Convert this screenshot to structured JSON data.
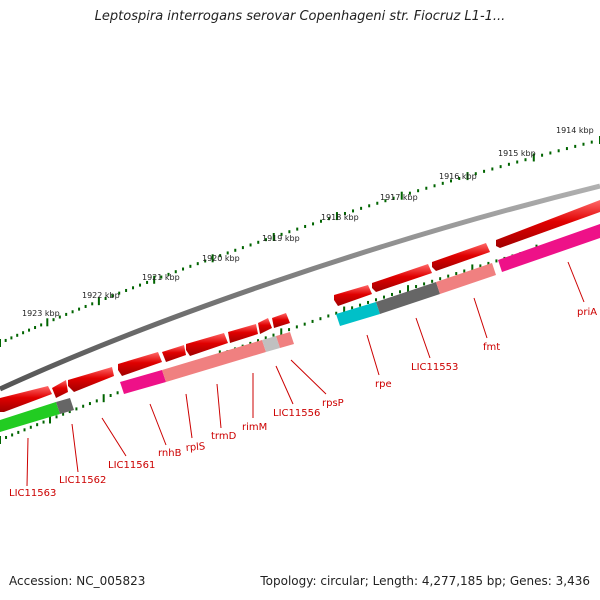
{
  "title": "Leptospira interrogans serovar Copenhageni str. Fiocruz L1-1...",
  "footer": {
    "accession": "Accession: NC_005823",
    "info": "Topology: circular; Length: 4,277,185 bp; Genes: 3,436"
  },
  "scale_labels": [
    "1923 kbp",
    "1922 kbp",
    "1921 kbp",
    "1920 kbp",
    "1919 kbp",
    "1918 kbp",
    "1917 kbp",
    "1916 kbp",
    "1915 kbp",
    "1914 kbp"
  ],
  "gene_labels": [
    "LIC11563",
    "LIC11562",
    "LIC11561",
    "rnhB",
    "rplS",
    "trmD",
    "rimM",
    "LIC11556",
    "rpsP",
    "rpe",
    "LIC11553",
    "fmt",
    "priA"
  ],
  "colors": {
    "backbone": "#808080",
    "cds": "#e00000",
    "gene_label": "#cc0000",
    "tick": "#006400",
    "cog_green": "#22cc22",
    "cog_magenta": "#ee1188",
    "cog_salmon": "#f08080",
    "cog_gray": "#666666",
    "cog_lightgray": "#c0c0c0",
    "cog_cyan": "#00c0c8"
  }
}
